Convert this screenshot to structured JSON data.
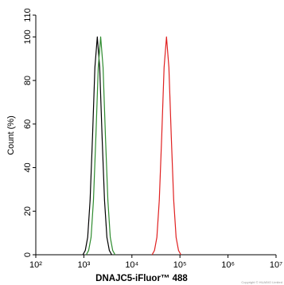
{
  "chart_data": {
    "type": "line",
    "x_label": "DNAJC5-iFluor™ 488",
    "y_label": "Count (%)",
    "annotation": "Copyright © HUABIO Limited",
    "xscale": "log",
    "xlim": [
      100,
      10000000
    ],
    "xticks": [
      {
        "value": 100,
        "label": "10²"
      },
      {
        "value": 1000,
        "label": "10³"
      },
      {
        "value": 10000,
        "label": "10⁴"
      },
      {
        "value": 100000,
        "label": "10⁵"
      },
      {
        "value": 1000000,
        "label": "10⁶"
      },
      {
        "value": 10000000,
        "label": "10⁷"
      }
    ],
    "ylim": [
      0,
      110
    ],
    "yticks": [
      0,
      20,
      40,
      60,
      80,
      100,
      110
    ],
    "series": [
      {
        "color": "#000000",
        "x": [
          955,
          1072,
          1202,
          1349,
          1514,
          1698,
          1905,
          2138,
          2399,
          2692,
          3020,
          3388,
          3802
        ],
        "values": [
          0,
          2,
          8,
          25,
          54,
          86,
          100,
          86,
          54,
          25,
          8,
          2,
          0
        ]
      },
      {
        "color": "#2e8b2e",
        "x": [
          1122,
          1259,
          1413,
          1585,
          1778,
          1995,
          2239,
          2512,
          2818,
          3162,
          3548,
          3981,
          4467
        ],
        "values": [
          0,
          2,
          8,
          25,
          54,
          86,
          100,
          86,
          54,
          25,
          8,
          2,
          0
        ]
      },
      {
        "color": "#e02020",
        "x": [
          26303,
          29512,
          33113,
          37154,
          41687,
          46774,
          52481,
          58884,
          66069,
          74131,
          83176,
          93325,
          104713
        ],
        "values": [
          0,
          2,
          8,
          25,
          54,
          86,
          100,
          86,
          54,
          25,
          8,
          2,
          0
        ]
      }
    ]
  }
}
